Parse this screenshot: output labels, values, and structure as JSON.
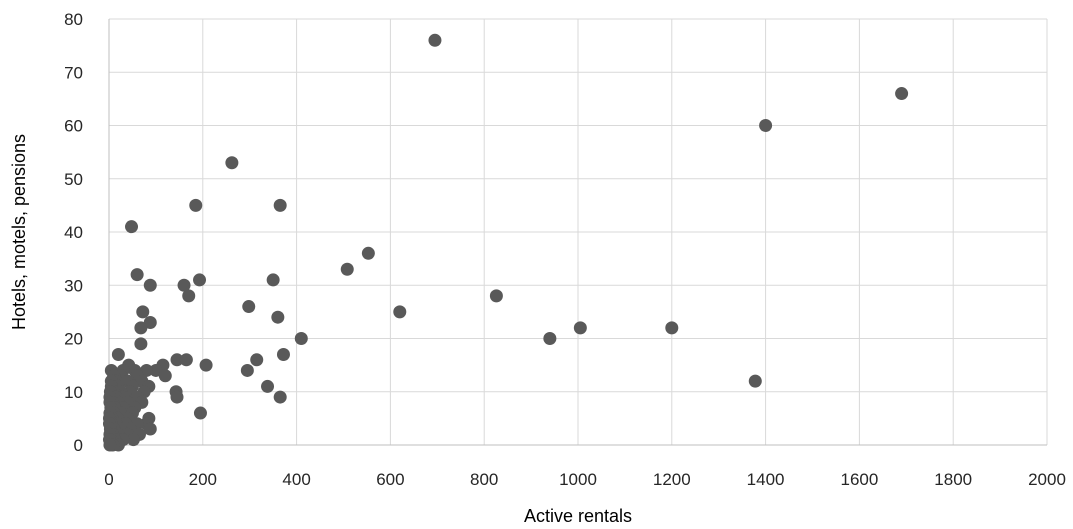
{
  "chart_data": {
    "type": "scatter",
    "xlabel": "Active rentals",
    "ylabel": "Hotels, motels, pensions",
    "xlim": [
      0,
      2000
    ],
    "ylim": [
      0,
      80
    ],
    "x_ticks": [
      0,
      200,
      400,
      600,
      800,
      1000,
      1200,
      1400,
      1600,
      1800,
      2000
    ],
    "y_ticks": [
      0,
      10,
      20,
      30,
      40,
      50,
      60,
      70,
      80
    ],
    "x_tick_labels": [
      "0",
      "200",
      "400",
      "600",
      "800",
      "1000",
      "1200",
      "1400",
      "1600",
      "1800",
      "2000"
    ],
    "y_tick_labels": [
      "0",
      "10",
      "20",
      "30",
      "40",
      "50",
      "60",
      "70",
      "80"
    ],
    "grid": true,
    "legend": "none",
    "marker_color": "#595959",
    "series": [
      {
        "points": [
          [
            695,
            76
          ],
          [
            1690,
            66
          ],
          [
            1400,
            60
          ],
          [
            262,
            53
          ],
          [
            185,
            45
          ],
          [
            365,
            45
          ],
          [
            48,
            41
          ],
          [
            553,
            36
          ],
          [
            508,
            33
          ],
          [
            60,
            32
          ],
          [
            193,
            31
          ],
          [
            350,
            31
          ],
          [
            160,
            30
          ],
          [
            88,
            30
          ],
          [
            826,
            28
          ],
          [
            170,
            28
          ],
          [
            298,
            26
          ],
          [
            620,
            25
          ],
          [
            72,
            25
          ],
          [
            360,
            24
          ],
          [
            88,
            23
          ],
          [
            1005,
            22
          ],
          [
            1200,
            22
          ],
          [
            68,
            22
          ],
          [
            940,
            20
          ],
          [
            410,
            20
          ],
          [
            68,
            19
          ],
          [
            20,
            17
          ],
          [
            372,
            17
          ],
          [
            145,
            16
          ],
          [
            165,
            16
          ],
          [
            315,
            16
          ],
          [
            115,
            15
          ],
          [
            207,
            15
          ],
          [
            42,
            15
          ],
          [
            5,
            14
          ],
          [
            295,
            14
          ],
          [
            100,
            14
          ],
          [
            80,
            14
          ],
          [
            55,
            14
          ],
          [
            30,
            14
          ],
          [
            120,
            13
          ],
          [
            60,
            13
          ],
          [
            25,
            13
          ],
          [
            10,
            13
          ],
          [
            1378,
            12
          ],
          [
            70,
            12
          ],
          [
            40,
            12
          ],
          [
            15,
            12
          ],
          [
            5,
            12
          ],
          [
            338,
            11
          ],
          [
            85,
            11
          ],
          [
            50,
            11
          ],
          [
            20,
            11
          ],
          [
            5,
            11
          ],
          [
            143,
            10
          ],
          [
            75,
            10
          ],
          [
            45,
            10
          ],
          [
            25,
            10
          ],
          [
            10,
            10
          ],
          [
            3,
            10
          ],
          [
            145,
            9
          ],
          [
            365,
            9
          ],
          [
            60,
            9
          ],
          [
            30,
            9
          ],
          [
            15,
            9
          ],
          [
            2,
            9
          ],
          [
            70,
            8
          ],
          [
            40,
            8
          ],
          [
            20,
            8
          ],
          [
            8,
            8
          ],
          [
            2,
            8
          ],
          [
            55,
            7
          ],
          [
            30,
            7
          ],
          [
            12,
            7
          ],
          [
            4,
            7
          ],
          [
            195,
            6
          ],
          [
            50,
            6
          ],
          [
            25,
            6
          ],
          [
            10,
            6
          ],
          [
            2,
            6
          ],
          [
            85,
            5
          ],
          [
            40,
            5
          ],
          [
            18,
            5
          ],
          [
            6,
            5
          ],
          [
            1,
            5
          ],
          [
            80,
            4
          ],
          [
            60,
            4
          ],
          [
            35,
            4
          ],
          [
            15,
            4
          ],
          [
            5,
            4
          ],
          [
            1,
            4
          ],
          [
            88,
            3
          ],
          [
            45,
            3
          ],
          [
            25,
            3
          ],
          [
            10,
            3
          ],
          [
            3,
            3
          ],
          [
            65,
            2
          ],
          [
            40,
            2
          ],
          [
            20,
            2
          ],
          [
            8,
            2
          ],
          [
            2,
            2
          ],
          [
            52,
            1
          ],
          [
            30,
            1
          ],
          [
            12,
            1
          ],
          [
            4,
            1
          ],
          [
            1,
            1
          ],
          [
            20,
            0
          ],
          [
            8,
            0
          ],
          [
            2,
            0
          ]
        ]
      }
    ]
  }
}
